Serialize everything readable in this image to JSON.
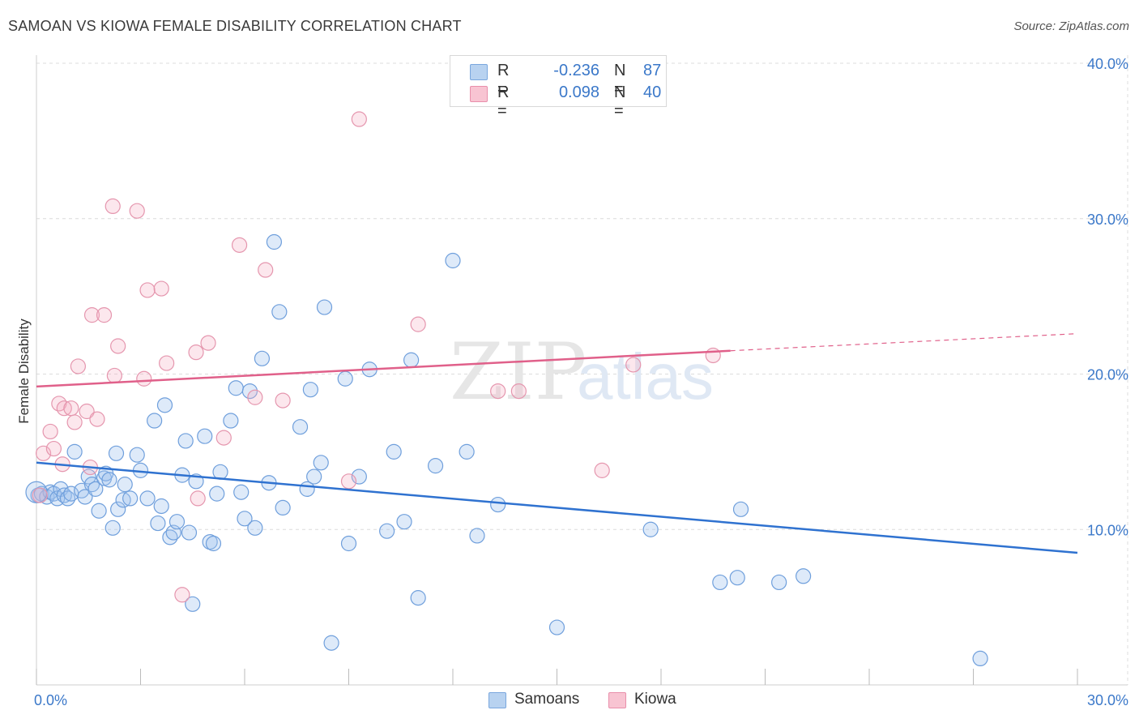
{
  "title": "SAMOAN VS KIOWA FEMALE DISABILITY CORRELATION CHART",
  "source": "Source: ZipAtlas.com",
  "watermark": {
    "zip": "ZIP",
    "atlas": "atlas"
  },
  "legend": {
    "rows": [
      {
        "r_label": "R =",
        "r_value": "-0.236",
        "n_label": "N =",
        "n_value": "87",
        "fill": "#b8d2f0",
        "stroke": "#7aa7de"
      },
      {
        "r_label": "R =",
        "r_value": "0.098",
        "n_label": "N =",
        "n_value": "40",
        "fill": "#f8c4d2",
        "stroke": "#e98fab"
      }
    ]
  },
  "colors": {
    "samoans_fill": "rgba(160,195,238,0.35)",
    "samoans_stroke": "#6f9fdc",
    "samoans_line": "#2f72d0",
    "kiowa_fill": "rgba(245,175,195,0.3)",
    "kiowa_stroke": "#e596ae",
    "kiowa_line": "#e0608a",
    "axis_label": "#3b78c9",
    "grid": "#dcdcdc"
  },
  "chart_data": {
    "type": "scatter",
    "title": "SAMOAN VS KIOWA FEMALE DISABILITY CORRELATION CHART",
    "xlabel": "",
    "ylabel": "Female Disability",
    "xlim": [
      0,
      30
    ],
    "ylim": [
      0,
      40
    ],
    "x_tick_labels": [
      {
        "value": 0,
        "label": "0.0%"
      },
      {
        "value": 30,
        "label": "30.0%"
      }
    ],
    "y_tick_labels": [
      {
        "value": 10,
        "label": "10.0%"
      },
      {
        "value": 20,
        "label": "20.0%"
      },
      {
        "value": 30,
        "label": "30.0%"
      },
      {
        "value": 40,
        "label": "40.0%"
      }
    ],
    "grid": true,
    "legend_position": "bottom-center",
    "series": [
      {
        "name": "Samoans",
        "trend": {
          "x": [
            0,
            30
          ],
          "y": [
            14.3,
            8.5
          ],
          "dashed_from": null
        },
        "points": [
          [
            0.05,
            12.2
          ],
          [
            0.15,
            12.3
          ],
          [
            0.3,
            12.1
          ],
          [
            0.4,
            12.4
          ],
          [
            0.5,
            12.3
          ],
          [
            0.6,
            12.0
          ],
          [
            0.7,
            12.6
          ],
          [
            0.8,
            12.2
          ],
          [
            0.9,
            12.0
          ],
          [
            1.0,
            12.3
          ],
          [
            1.1,
            15.0
          ],
          [
            1.3,
            12.5
          ],
          [
            1.4,
            12.1
          ],
          [
            1.5,
            13.4
          ],
          [
            1.6,
            12.9
          ],
          [
            1.7,
            12.6
          ],
          [
            1.8,
            11.2
          ],
          [
            1.95,
            13.3
          ],
          [
            2.0,
            13.6
          ],
          [
            2.1,
            13.2
          ],
          [
            2.2,
            10.1
          ],
          [
            2.3,
            14.9
          ],
          [
            2.35,
            11.3
          ],
          [
            2.5,
            11.9
          ],
          [
            2.55,
            12.9
          ],
          [
            2.7,
            12.0
          ],
          [
            2.9,
            14.8
          ],
          [
            3.0,
            13.8
          ],
          [
            3.2,
            12.0
          ],
          [
            3.4,
            17.0
          ],
          [
            3.5,
            10.4
          ],
          [
            3.6,
            11.5
          ],
          [
            3.7,
            18.0
          ],
          [
            3.85,
            9.5
          ],
          [
            3.95,
            9.8
          ],
          [
            4.05,
            10.5
          ],
          [
            4.2,
            13.5
          ],
          [
            4.3,
            15.7
          ],
          [
            4.4,
            9.8
          ],
          [
            4.5,
            5.2
          ],
          [
            4.6,
            13.1
          ],
          [
            4.85,
            16.0
          ],
          [
            5.0,
            9.2
          ],
          [
            5.1,
            9.1
          ],
          [
            5.2,
            12.3
          ],
          [
            5.3,
            13.7
          ],
          [
            5.6,
            17.0
          ],
          [
            5.75,
            19.1
          ],
          [
            5.9,
            12.4
          ],
          [
            6.0,
            10.7
          ],
          [
            6.15,
            18.9
          ],
          [
            6.3,
            10.1
          ],
          [
            6.5,
            21.0
          ],
          [
            6.7,
            13.0
          ],
          [
            6.85,
            28.5
          ],
          [
            7.0,
            24.0
          ],
          [
            7.1,
            11.4
          ],
          [
            7.6,
            16.6
          ],
          [
            7.8,
            12.6
          ],
          [
            7.9,
            19.0
          ],
          [
            8.0,
            13.4
          ],
          [
            8.2,
            14.3
          ],
          [
            8.3,
            24.3
          ],
          [
            8.5,
            2.7
          ],
          [
            8.9,
            19.7
          ],
          [
            9.0,
            9.1
          ],
          [
            9.3,
            13.4
          ],
          [
            9.6,
            20.3
          ],
          [
            10.1,
            9.9
          ],
          [
            10.3,
            15.0
          ],
          [
            10.6,
            10.5
          ],
          [
            10.8,
            20.9
          ],
          [
            11.0,
            5.6
          ],
          [
            11.5,
            14.1
          ],
          [
            12.0,
            27.3
          ],
          [
            12.4,
            15.0
          ],
          [
            12.7,
            9.6
          ],
          [
            13.3,
            11.6
          ],
          [
            15.0,
            3.7
          ],
          [
            17.7,
            10.0
          ],
          [
            19.7,
            6.6
          ],
          [
            20.2,
            6.9
          ],
          [
            20.3,
            11.3
          ],
          [
            21.4,
            6.6
          ],
          [
            22.1,
            7.0
          ],
          [
            27.2,
            1.7
          ],
          [
            0.0,
            12.4
          ]
        ]
      },
      {
        "name": "Kiowa",
        "trend": {
          "x": [
            0,
            20.0
          ],
          "y": [
            19.2,
            21.5
          ],
          "dashed_to": [
            30,
            22.6
          ]
        },
        "points": [
          [
            0.1,
            12.2
          ],
          [
            0.2,
            14.9
          ],
          [
            0.4,
            16.3
          ],
          [
            0.5,
            15.2
          ],
          [
            0.65,
            18.1
          ],
          [
            0.75,
            14.2
          ],
          [
            0.8,
            17.8
          ],
          [
            1.0,
            17.8
          ],
          [
            1.1,
            16.9
          ],
          [
            1.2,
            20.5
          ],
          [
            1.45,
            17.6
          ],
          [
            1.55,
            14.0
          ],
          [
            1.6,
            23.8
          ],
          [
            1.75,
            17.1
          ],
          [
            1.95,
            23.8
          ],
          [
            2.2,
            30.8
          ],
          [
            2.25,
            19.9
          ],
          [
            2.35,
            21.8
          ],
          [
            2.9,
            30.5
          ],
          [
            3.1,
            19.7
          ],
          [
            3.2,
            25.4
          ],
          [
            3.6,
            25.5
          ],
          [
            3.75,
            20.7
          ],
          [
            4.2,
            5.8
          ],
          [
            4.6,
            21.4
          ],
          [
            4.65,
            12.0
          ],
          [
            4.95,
            22.0
          ],
          [
            5.4,
            15.9
          ],
          [
            5.85,
            28.3
          ],
          [
            6.3,
            18.5
          ],
          [
            6.6,
            26.7
          ],
          [
            7.1,
            18.3
          ],
          [
            9.0,
            13.1
          ],
          [
            9.3,
            36.4
          ],
          [
            11.0,
            23.2
          ],
          [
            13.3,
            18.9
          ],
          [
            13.9,
            18.9
          ],
          [
            16.3,
            13.8
          ],
          [
            17.2,
            20.6
          ],
          [
            19.5,
            21.2
          ]
        ]
      }
    ]
  },
  "bottom_legend": [
    {
      "label": "Samoans"
    },
    {
      "label": "Kiowa"
    }
  ]
}
